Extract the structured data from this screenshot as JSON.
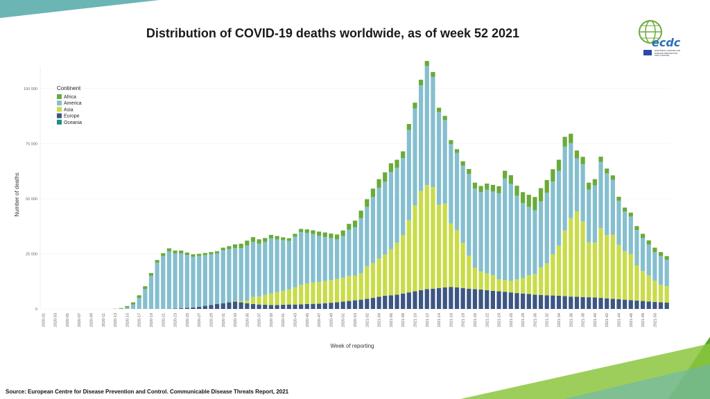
{
  "title": "Distribution of COVID-19 deaths worldwide, as of week 52 2021",
  "source": "Source: European Centre for Disease Prevention and Control. Communicable Disease Threats Report, 2021",
  "logo": {
    "text": "ecdc",
    "subtitle": "EUROPEAN CENTRE FOR DISEASE PREVENTION AND CONTROL"
  },
  "colors": {
    "Africa": "#6aaa3a",
    "America": "#86bfcf",
    "Asia": "#c9dc49",
    "Europe": "#3d5683",
    "Oceania": "#1f8f80",
    "accent": "#8cc63f",
    "teal": "#6bb5b5"
  },
  "chart_data": {
    "type": "bar",
    "stacked": true,
    "xlabel": "Week of reporting",
    "ylabel": "Number of deaths",
    "ylim": [
      0,
      110000
    ],
    "yticks": [
      0,
      25000,
      50000,
      75000,
      100000
    ],
    "ytick_labels": [
      "0",
      "25 000",
      "50 000",
      "75 000",
      "100 000"
    ],
    "legend_title": "Continent",
    "legend_position": "top-left",
    "tick_labels": [
      "2020-01",
      "2020-03",
      "2020-05",
      "2020-07",
      "2020-09",
      "2020-11",
      "2020-13",
      "2020-15",
      "2020-17",
      "2020-19",
      "2020-21",
      "2020-23",
      "2020-25",
      "2020-27",
      "2020-29",
      "2020-31",
      "2020-33",
      "2020-35",
      "2020-37",
      "2020-39",
      "2020-41",
      "2020-43",
      "2020-45",
      "2020-47",
      "2020-49",
      "2020-51",
      "2020-53",
      "2021-02",
      "2021-04",
      "2021-06",
      "2021-08",
      "2021-10",
      "2021-12",
      "2021-14",
      "2021-16",
      "2021-18",
      "2021-20",
      "2021-22",
      "2021-24",
      "2021-26",
      "2021-28",
      "2021-30",
      "2021-32",
      "2021-34",
      "2021-36",
      "2021-38",
      "2021-40",
      "2021-42",
      "2021-44",
      "2021-46",
      "2021-48",
      "2021-50"
    ],
    "weeks": 105,
    "series": [
      {
        "name": "Africa",
        "values": [
          0,
          0,
          0,
          0,
          0,
          0,
          0,
          0,
          0,
          0,
          0,
          0,
          100,
          300,
          600,
          1000,
          1200,
          1300,
          1300,
          1200,
          1300,
          1400,
          1300,
          1200,
          1100,
          1100,
          1000,
          1000,
          1000,
          1000,
          1200,
          1400,
          1700,
          2000,
          2200,
          2200,
          2000,
          1800,
          1600,
          1500,
          1300,
          1200,
          1300,
          1400,
          1600,
          1700,
          1900,
          2000,
          2000,
          2200,
          2500,
          2600,
          3000,
          3400,
          3500,
          3800,
          4000,
          4300,
          4000,
          3600,
          3000,
          2700,
          2600,
          2500,
          2300,
          2200,
          2000,
          1800,
          1800,
          1700,
          2000,
          2300,
          2600,
          2800,
          2800,
          3000,
          3200,
          3500,
          4000,
          4500,
          5000,
          5500,
          6000,
          6000,
          5800,
          5600,
          5000,
          4500,
          4300,
          3600,
          3300,
          3100,
          2800,
          2400,
          2200,
          2000,
          1800,
          1800,
          1800,
          1800,
          1900,
          1900,
          2000,
          1800,
          1700
        ]
      },
      {
        "name": "America",
        "values": [
          0,
          0,
          0,
          0,
          0,
          0,
          0,
          0,
          0,
          0,
          0,
          0,
          0,
          100,
          700,
          2000,
          5000,
          9000,
          15000,
          21000,
          24000,
          26000,
          25000,
          25000,
          24000,
          23000,
          23000,
          23000,
          23000,
          23000,
          24000,
          24000,
          24000,
          24000,
          25000,
          25000,
          24000,
          24000,
          25000,
          24000,
          23000,
          22000,
          23000,
          24000,
          23000,
          22000,
          21000,
          20000,
          19000,
          18000,
          19000,
          21000,
          22000,
          25000,
          27000,
          30000,
          32000,
          33000,
          35000,
          34000,
          35000,
          41000,
          44000,
          48000,
          54000,
          50000,
          42000,
          38000,
          36000,
          35000,
          35000,
          37000,
          36000,
          36000,
          38000,
          38000,
          39000,
          46000,
          44000,
          38000,
          34000,
          31000,
          29000,
          30000,
          32000,
          33000,
          34000,
          38000,
          34000,
          24000,
          26000,
          24000,
          26000,
          30000,
          28000,
          25000,
          20000,
          18000,
          17000,
          16000,
          15000,
          14000,
          13000,
          13000,
          12000
        ]
      },
      {
        "name": "Asia",
        "values": [
          0,
          0,
          0,
          0,
          0,
          0,
          0,
          0,
          0,
          0,
          0,
          0,
          0,
          0,
          0,
          0,
          0,
          0,
          0,
          0,
          0,
          0,
          0,
          0,
          0,
          0,
          0,
          0,
          0,
          0,
          0,
          100,
          300,
          600,
          1200,
          3200,
          3600,
          4500,
          5200,
          5800,
          6300,
          6900,
          7800,
          8800,
          9300,
          9700,
          9800,
          10100,
          10400,
          10600,
          10800,
          11400,
          11200,
          12000,
          14700,
          15800,
          17400,
          18700,
          20900,
          23600,
          26500,
          32700,
          39000,
          45000,
          47200,
          46100,
          37800,
          38000,
          28800,
          26000,
          20500,
          15000,
          9700,
          8200,
          7600,
          7100,
          5500,
          5400,
          5200,
          6200,
          7000,
          8500,
          9300,
          12500,
          14500,
          18700,
          22700,
          29800,
          35600,
          38800,
          34300,
          24900,
          24900,
          31700,
          28700,
          29000,
          24700,
          22000,
          20900,
          16000,
          13600,
          11800,
          9600,
          8000,
          7400
        ]
      },
      {
        "name": "Europe",
        "values": [
          0,
          0,
          0,
          0,
          0,
          0,
          0,
          0,
          0,
          0,
          0,
          0,
          0,
          0,
          0,
          0,
          0,
          0,
          0,
          0,
          0,
          100,
          200,
          300,
          500,
          700,
          1000,
          1400,
          1800,
          2200,
          2600,
          3000,
          3300,
          3000,
          2600,
          2200,
          2000,
          1900,
          1800,
          1800,
          1900,
          2000,
          2000,
          2100,
          2200,
          2300,
          2400,
          2600,
          2800,
          3000,
          3300,
          3600,
          3900,
          4200,
          4600,
          5000,
          5500,
          6000,
          6200,
          6500,
          7000,
          7500,
          8000,
          8500,
          9000,
          9200,
          9500,
          9800,
          10000,
          9800,
          9500,
          9200,
          9000,
          8800,
          8500,
          8200,
          8000,
          7800,
          7500,
          7200,
          7000,
          6800,
          6500,
          6300,
          6200,
          6100,
          6000,
          5800,
          5600,
          5500,
          5400,
          5300,
          5200,
          5000,
          4800,
          4600,
          4400,
          4200,
          4000,
          3800,
          3600,
          3400,
          3200,
          3000,
          2900
        ]
      },
      {
        "name": "Oceania",
        "values": [
          0,
          0,
          0,
          0,
          0,
          0,
          0,
          0,
          0,
          0,
          0,
          0,
          0,
          0,
          0,
          0,
          0,
          0,
          0,
          0,
          0,
          0,
          0,
          0,
          0,
          0,
          0,
          0,
          0,
          0,
          0,
          0,
          0,
          0,
          0,
          0,
          0,
          0,
          0,
          0,
          0,
          0,
          0,
          0,
          0,
          0,
          0,
          0,
          0,
          0,
          0,
          0,
          0,
          0,
          0,
          0,
          0,
          0,
          0,
          0,
          0,
          0,
          0,
          0,
          0,
          0,
          0,
          0,
          0,
          0,
          0,
          0,
          0,
          0,
          0,
          0,
          0,
          0,
          0,
          0,
          0,
          0,
          0,
          0,
          0,
          0,
          0,
          0,
          0,
          0,
          0,
          0,
          0,
          0,
          0,
          0,
          0,
          0,
          0,
          0,
          0,
          0,
          0,
          0,
          0
        ]
      }
    ]
  }
}
